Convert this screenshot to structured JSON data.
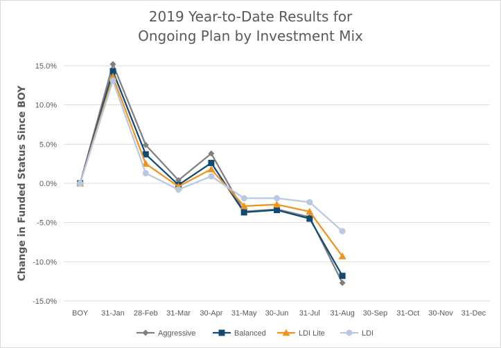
{
  "chart_data": {
    "type": "line",
    "title_lines": [
      "2019 Year-to-Date Results for",
      "Ongoing Plan by Investment Mix"
    ],
    "ylabel": "Change in Funded Status Since BOY",
    "xlabel": "",
    "categories": [
      "BOY",
      "31-Jan",
      "28-Feb",
      "31-Mar",
      "30-Apr",
      "31-May",
      "30-Jun",
      "31-Jul",
      "31-Aug",
      "30-Sep",
      "31-Oct",
      "30-Nov",
      "31-Dec"
    ],
    "ylim": [
      -15,
      15
    ],
    "yticks": [
      15,
      10,
      5,
      0,
      -5,
      -10,
      -15
    ],
    "ytick_labels": [
      "15.0%",
      "10.0%",
      "5.0%",
      "0.0%",
      "-5.0%",
      "-10.0%",
      "-15.0%"
    ],
    "grid": "horizontal",
    "legend_position": "bottom",
    "series": [
      {
        "name": "Aggressive",
        "color": "#7f7f7f",
        "marker": "diamond",
        "values": [
          0,
          15.2,
          4.9,
          0.4,
          3.8,
          -3.6,
          -3.3,
          -4.3,
          -12.7,
          null,
          null,
          null,
          null
        ]
      },
      {
        "name": "Balanced",
        "color": "#0f4a73",
        "marker": "square",
        "values": [
          0,
          14.3,
          3.7,
          -0.2,
          2.6,
          -3.7,
          -3.4,
          -4.5,
          -11.8,
          null,
          null,
          null,
          null
        ]
      },
      {
        "name": "LDI Lite",
        "color": "#f0931e",
        "marker": "triangle",
        "values": [
          0,
          13.6,
          2.5,
          -0.4,
          1.8,
          -2.9,
          -2.7,
          -3.6,
          -9.3,
          null,
          null,
          null,
          null
        ]
      },
      {
        "name": "LDI",
        "color": "#b9c8e2",
        "marker": "circle",
        "values": [
          0,
          13.1,
          1.3,
          -0.8,
          0.9,
          -1.9,
          -1.9,
          -2.4,
          -6.1,
          null,
          null,
          null,
          null
        ]
      }
    ]
  }
}
